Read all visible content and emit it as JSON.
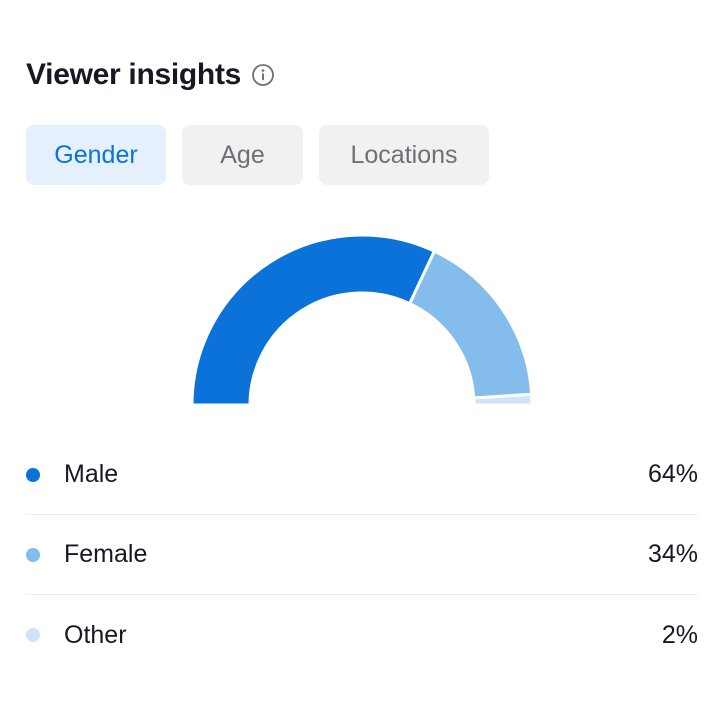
{
  "header": {
    "title": "Viewer insights",
    "info_icon": "info-icon"
  },
  "tabs": [
    {
      "label": "Gender",
      "active": true
    },
    {
      "label": "Age",
      "active": false
    },
    {
      "label": "Locations",
      "active": false
    }
  ],
  "colors": {
    "male": "#0a72d8",
    "female": "#84bcec",
    "other": "#cfe4f8",
    "active_tab_bg": "#e4f0fb",
    "active_tab_text": "#0a72d8"
  },
  "chart_data": {
    "type": "pie",
    "variant": "semi-donut",
    "categories": [
      "Male",
      "Female",
      "Other"
    ],
    "values": [
      64,
      34,
      2
    ],
    "unit": "%"
  },
  "legend": [
    {
      "label": "Male",
      "value": "64%",
      "color": "#0a72d8"
    },
    {
      "label": "Female",
      "value": "34%",
      "color": "#84bcec"
    },
    {
      "label": "Other",
      "value": "2%",
      "color": "#cfe4f8"
    }
  ]
}
